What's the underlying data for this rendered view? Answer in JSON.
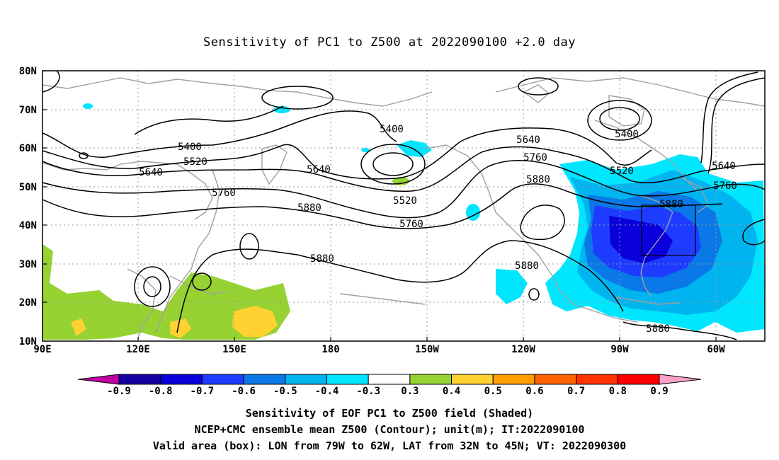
{
  "title": "Sensitivity of PC1 to Z500 at 2022090100 +2.0 day",
  "lat_labels": [
    "80N",
    "70N",
    "60N",
    "50N",
    "40N",
    "30N",
    "20N",
    "10N"
  ],
  "lon_labels": [
    "90E",
    "120E",
    "150E",
    "180",
    "150W",
    "120W",
    "90W",
    "60W"
  ],
  "contour_labels": [
    "5400",
    "5520",
    "5640",
    "5760",
    "5880",
    "5880",
    "5400",
    "5520",
    "5640",
    "5760",
    "5880",
    "5400",
    "5520",
    "5640",
    "5760",
    "5880",
    "5880",
    "5880"
  ],
  "colorbar": {
    "labels": [
      "-0.9",
      "-0.8",
      "-0.7",
      "-0.6",
      "-0.5",
      "-0.4",
      "-0.3",
      "0.3",
      "0.4",
      "0.5",
      "0.6",
      "0.7",
      "0.8",
      "0.9"
    ],
    "colors": [
      "#1400a0",
      "#0a00dc",
      "#1e3cff",
      "#0a78e6",
      "#00b4f0",
      "#00e6ff",
      "#ffffff",
      "#96d232",
      "#ffd232",
      "#ffa000",
      "#ff6400",
      "#ff3200",
      "#ff0000"
    ],
    "left_arrow": "#c000a0",
    "right_arrow": "#ffa0c8"
  },
  "colors": {
    "negative_dark": "#0a00dc",
    "negative_mid": "#1e3cff",
    "negative_light": "#00b4f0",
    "negative_pale": "#00e6ff",
    "positive_green": "#96d232",
    "positive_yellow": "#ffd232",
    "coast": "#a0a0a0"
  },
  "captions": {
    "line1": "Sensitivity of EOF PC1 to Z500 field (Shaded)",
    "line2": "NCEP+CMC ensemble mean Z500 (Contour); unit(m); IT:2022090100",
    "line3": "Valid area (box): LON from 79W to 62W, LAT from 32N to 45N; VT: 2022090300"
  }
}
